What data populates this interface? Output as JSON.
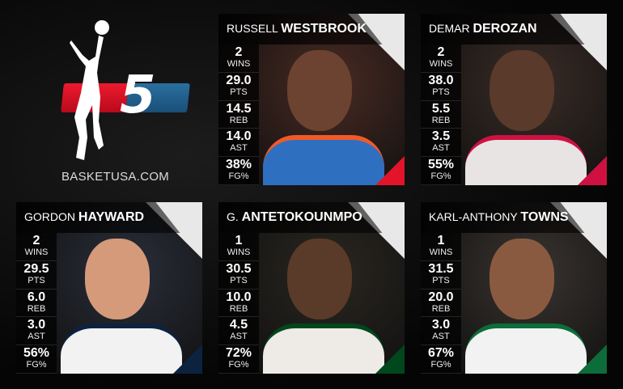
{
  "brand": {
    "site": "BASKETUSA.COM",
    "number": "5",
    "colors": {
      "red": "#e3142a",
      "blue": "#22618f"
    }
  },
  "players": [
    {
      "first": "RUSSELL",
      "last": "WESTBROOK",
      "team_color": "#2f6fc0",
      "accent": "#f05a28",
      "bg": "#4a2a22",
      "skin": "#6b4330",
      "stats": [
        {
          "value": "2",
          "label": "WINS"
        },
        {
          "value": "29.0",
          "label": "PTS"
        },
        {
          "value": "14.5",
          "label": "REB"
        },
        {
          "value": "14.0",
          "label": "AST"
        },
        {
          "value": "38%",
          "label": "FG%"
        }
      ]
    },
    {
      "first": "DEMAR",
      "last": "DEROZAN",
      "team_color": "#e8e4e4",
      "accent": "#ce1141",
      "bg": "#3a2c26",
      "skin": "#5a3a2a",
      "stats": [
        {
          "value": "2",
          "label": "WINS"
        },
        {
          "value": "38.0",
          "label": "PTS"
        },
        {
          "value": "5.5",
          "label": "REB"
        },
        {
          "value": "3.5",
          "label": "AST"
        },
        {
          "value": "55%",
          "label": "FG%"
        }
      ]
    },
    {
      "first": "GORDON",
      "last": "HAYWARD",
      "team_color": "#f2f2f2",
      "accent": "#0c2340",
      "bg": "#2a2e3a",
      "skin": "#d49a7a",
      "stats": [
        {
          "value": "2",
          "label": "WINS"
        },
        {
          "value": "29.5",
          "label": "PTS"
        },
        {
          "value": "6.0",
          "label": "REB"
        },
        {
          "value": "3.0",
          "label": "AST"
        },
        {
          "value": "56%",
          "label": "FG%"
        }
      ]
    },
    {
      "first": "G.",
      "last": "ANTETOKOUNMPO",
      "team_color": "#eeeae6",
      "accent": "#00471b",
      "bg": "#2a2620",
      "skin": "#5a3a28",
      "stats": [
        {
          "value": "1",
          "label": "WINS"
        },
        {
          "value": "30.5",
          "label": "PTS"
        },
        {
          "value": "10.0",
          "label": "REB"
        },
        {
          "value": "4.5",
          "label": "AST"
        },
        {
          "value": "72%",
          "label": "FG%"
        }
      ]
    },
    {
      "first": "KARL-ANTHONY",
      "last": "TOWNS",
      "team_color": "#f2f2f2",
      "accent": "#0c6c3a",
      "bg": "#3a3430",
      "skin": "#8a5a40",
      "stats": [
        {
          "value": "1",
          "label": "WINS"
        },
        {
          "value": "31.5",
          "label": "PTS"
        },
        {
          "value": "20.0",
          "label": "REB"
        },
        {
          "value": "3.0",
          "label": "AST"
        },
        {
          "value": "67%",
          "label": "FG%"
        }
      ]
    }
  ]
}
